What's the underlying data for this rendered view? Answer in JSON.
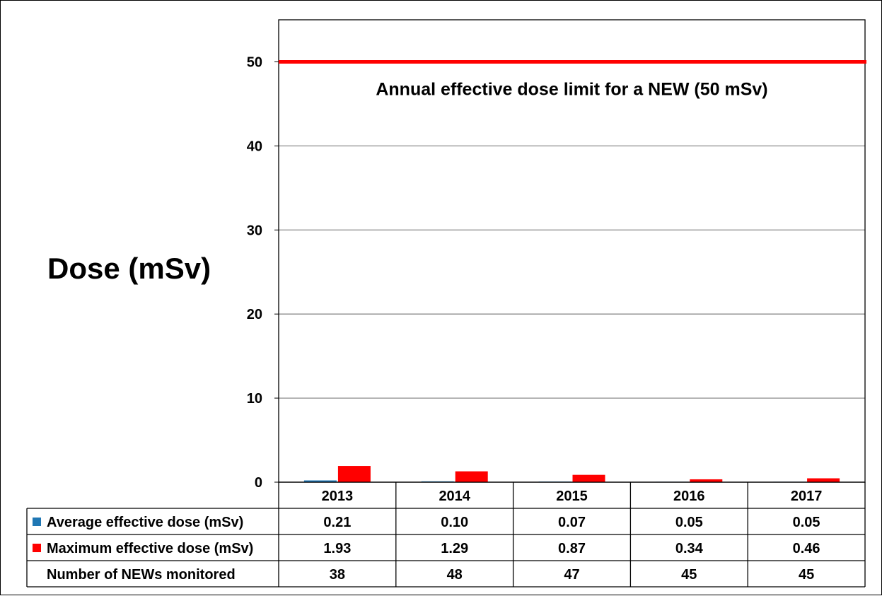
{
  "chart_data": {
    "type": "bar",
    "title": "",
    "ylabel": "Dose (mSv)",
    "xlabel": "",
    "ylim": [
      0,
      55
    ],
    "yticks": [
      0,
      10,
      20,
      30,
      40,
      50
    ],
    "grid": true,
    "categories": [
      "2013",
      "2014",
      "2015",
      "2016",
      "2017"
    ],
    "series": [
      {
        "name": "Average effective dose (mSv)",
        "values": [
          0.21,
          0.1,
          0.07,
          0.05,
          0.05
        ],
        "labels": [
          "0.21",
          "0.10",
          "0.07",
          "0.05",
          "0.05"
        ],
        "color": "#1f77b4"
      },
      {
        "name": "Maximum effective dose (mSv)",
        "values": [
          1.93,
          1.29,
          0.87,
          0.34,
          0.46
        ],
        "labels": [
          "1.93",
          "1.29",
          "0.87",
          "0.34",
          "0.46"
        ],
        "color": "#ff0000"
      }
    ],
    "limit_line": {
      "value": 50,
      "label": "Annual effective dose limit for a NEW (50 mSv)",
      "color": "#ff0000"
    },
    "table_extra_row": {
      "name": "Number of NEWs monitored",
      "values": [
        "38",
        "48",
        "47",
        "45",
        "45"
      ]
    }
  }
}
